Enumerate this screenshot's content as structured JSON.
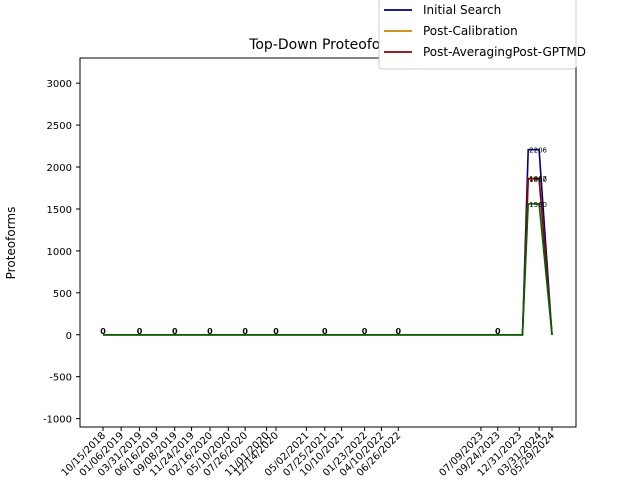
{
  "chart_data": {
    "type": "line",
    "title": "Top-Down Proteoforms",
    "ylabel": "Proteoforms",
    "xlabel": "",
    "ylim": [
      -1100,
      3300
    ],
    "yticks": [
      -1000,
      -500,
      0,
      500,
      1000,
      1500,
      2000,
      2500,
      3000
    ],
    "xtick_labels": [
      "10/15/2018",
      "01/06/2019",
      "03/31/2019",
      "06/16/2019",
      "09/08/2019",
      "11/24/2019",
      "02/16/2020",
      "05/10/2020",
      "07/26/2020",
      "11/01/2020",
      "12/14/2020",
      "05/02/2021",
      "07/25/2021",
      "10/10/2021",
      "01/23/2022",
      "04/10/2022",
      "06/26/2022",
      "07/09/2023",
      "09/24/2023",
      "12/31/2023",
      "03/31/2024",
      "05/29/2024"
    ],
    "x": [
      "10/15/2018",
      "01/06/2019",
      "03/31/2019",
      "06/16/2019",
      "09/08/2019",
      "11/24/2019",
      "02/16/2020",
      "05/10/2020",
      "07/26/2020",
      "11/01/2020",
      "12/14/2020",
      "05/02/2021",
      "07/25/2021",
      "10/10/2021",
      "01/23/2022",
      "04/10/2022",
      "06/26/2022",
      "07/09/2023",
      "09/24/2023",
      "12/31/2023",
      "01/15/2024",
      "02/10/2024",
      "03/31/2024",
      "05/29/2024"
    ],
    "series": [
      {
        "name": "Initial Search",
        "color": "#000080",
        "values": [
          0,
          0,
          0,
          0,
          0,
          0,
          0,
          0,
          0,
          0,
          0,
          0,
          0,
          0,
          0,
          0,
          0,
          0,
          0,
          0,
          0,
          2206,
          2206,
          0
        ]
      },
      {
        "name": "Post-Calibration",
        "color": "#cc8400",
        "values": [
          0,
          0,
          0,
          0,
          0,
          0,
          0,
          0,
          0,
          0,
          0,
          0,
          0,
          0,
          0,
          0,
          0,
          0,
          0,
          0,
          0,
          1867,
          1867,
          0
        ]
      },
      {
        "name": "Post-AveragingPost-GPTMD",
        "color": "#8b0000",
        "values": [
          0,
          0,
          0,
          0,
          0,
          0,
          0,
          0,
          0,
          0,
          0,
          0,
          0,
          0,
          0,
          0,
          0,
          0,
          0,
          0,
          0,
          1860,
          1860,
          0
        ]
      },
      {
        "color": "#006400",
        "values": [
          0,
          0,
          0,
          0,
          0,
          0,
          0,
          0,
          0,
          0,
          0,
          0,
          0,
          0,
          0,
          0,
          0,
          0,
          0,
          0,
          0,
          1560,
          1560,
          0
        ]
      }
    ],
    "zero_labels": [
      "0",
      "0",
      "0",
      "0",
      "0",
      "0",
      "0",
      "0",
      "0",
      "0"
    ],
    "peak_labels": [
      "2206",
      "1867",
      "1860",
      "1560"
    ],
    "legend_position": "upper-right, outside axes",
    "grid": false
  }
}
